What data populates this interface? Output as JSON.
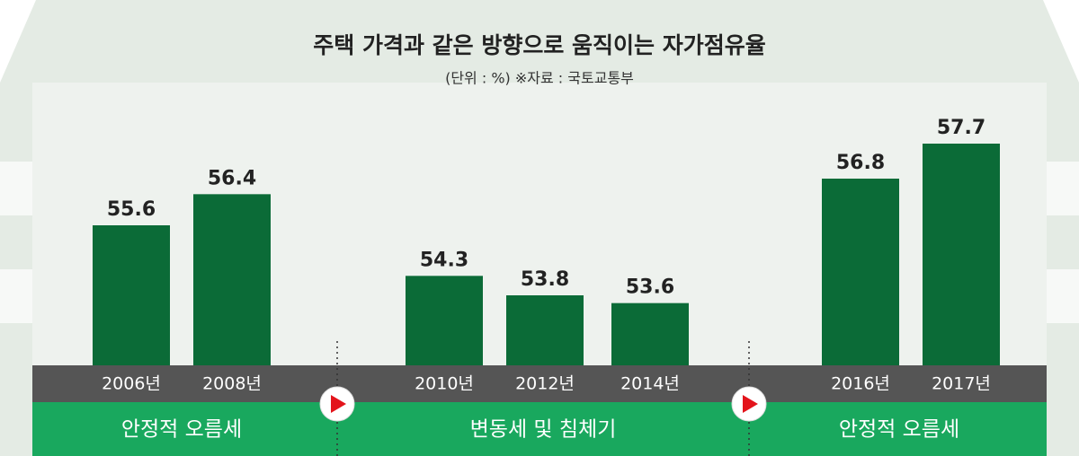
{
  "chart_data": {
    "type": "bar",
    "title": "주택 가격과 같은 방향으로 움직이는 자가점유율",
    "subtitle": "(단위 : %)  ※자료 : 국토교통부",
    "categories": [
      "2006년",
      "2008년",
      "2010년",
      "2012년",
      "2014년",
      "2016년",
      "2017년"
    ],
    "values": [
      55.6,
      56.4,
      54.3,
      53.8,
      53.6,
      56.8,
      57.7
    ],
    "color": "#0b6b37",
    "ylim": [
      52,
      58
    ],
    "phases": [
      "안정적 오름세",
      "변동세 및 침체기",
      "안정적 오름세"
    ]
  }
}
